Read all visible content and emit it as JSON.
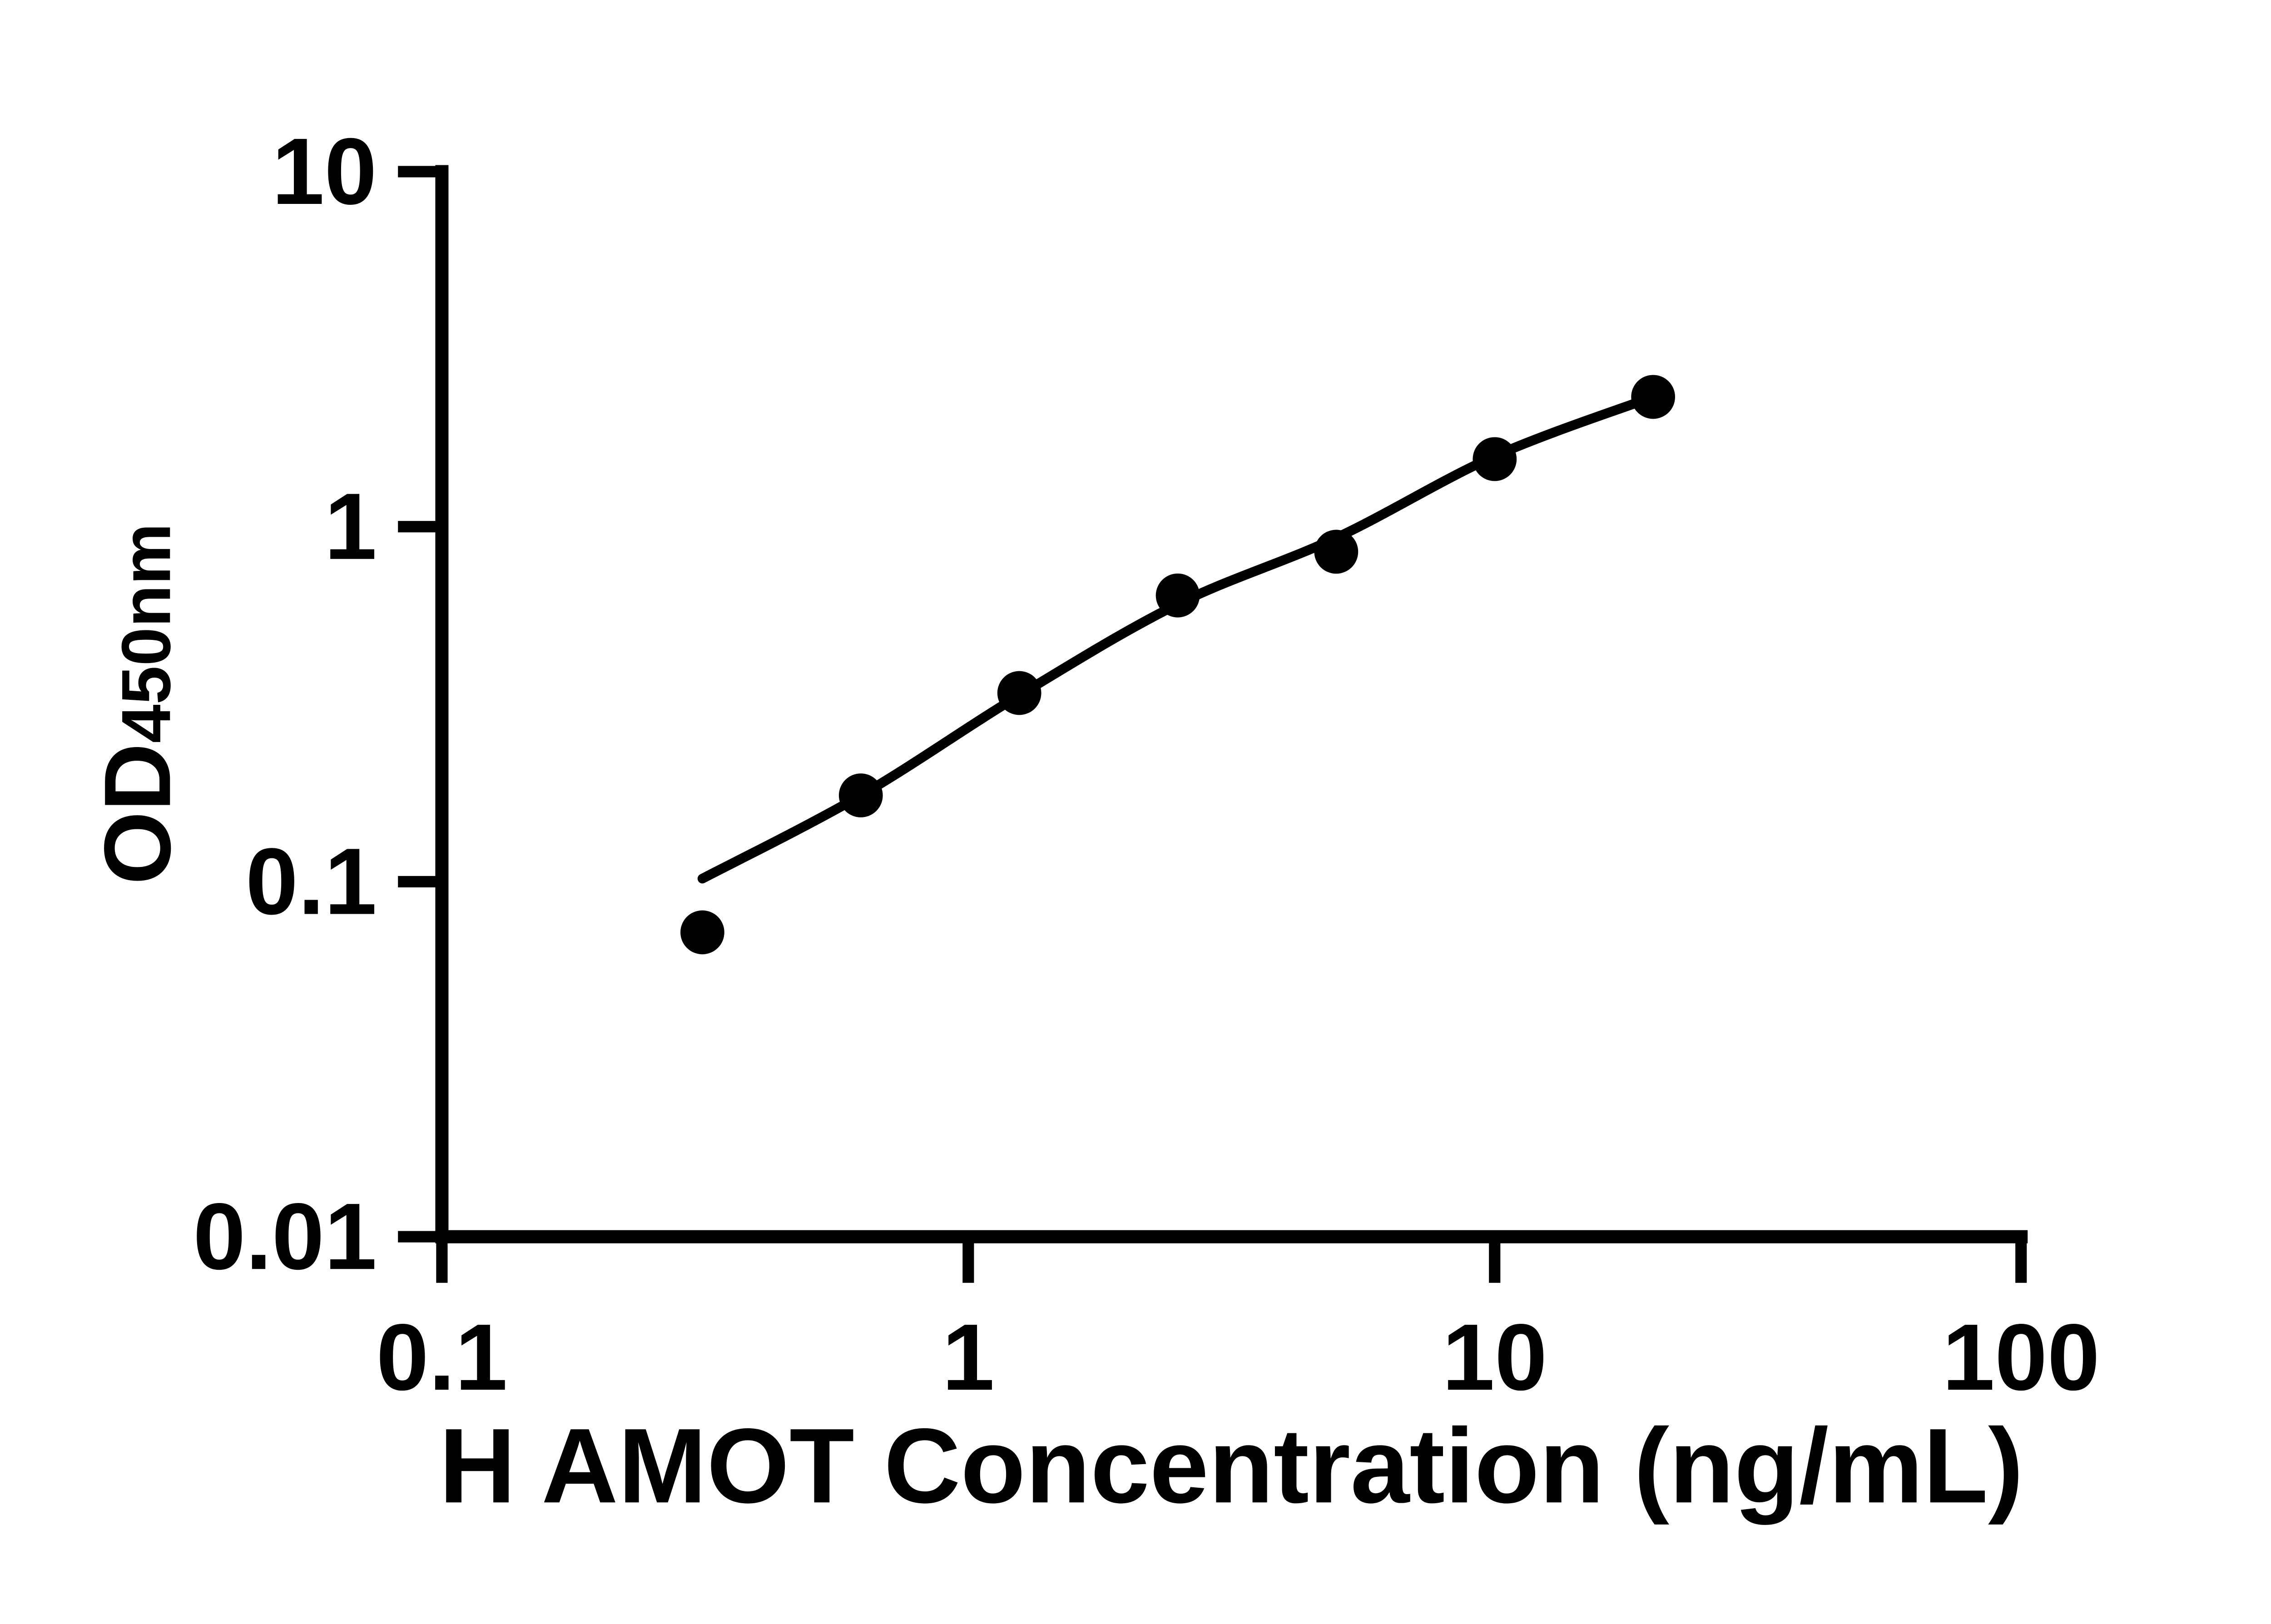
{
  "page": {
    "background": "#ffffff"
  },
  "colors": {
    "ink": "#000000",
    "background": "#ffffff"
  },
  "chart_data": {
    "type": "scatter",
    "title": "",
    "xlabel": "H AMOT Concentration (ng/mL)",
    "ylabel": "OD",
    "ylabel_subscript": "450nm",
    "x_scale": "log",
    "y_scale": "log",
    "xlim": [
      0.1,
      100
    ],
    "ylim": [
      0.01,
      10
    ],
    "grid": false,
    "legend": "none",
    "x_ticks": [
      {
        "value": 0.1,
        "label": "0.1"
      },
      {
        "value": 1,
        "label": "1"
      },
      {
        "value": 10,
        "label": "10"
      },
      {
        "value": 100,
        "label": "100"
      }
    ],
    "y_ticks": [
      {
        "value": 10,
        "label": "10"
      },
      {
        "value": 1,
        "label": "1"
      },
      {
        "value": 0.1,
        "label": "0.1"
      },
      {
        "value": 0.01,
        "label": "0.01"
      }
    ],
    "series": [
      {
        "name": "H AMOT standard curve points",
        "marker": "filled-circle",
        "color": "#000000",
        "points": [
          [
            0.3125,
            0.072
          ],
          [
            0.625,
            0.175
          ],
          [
            1.25,
            0.34
          ],
          [
            2.5,
            0.64
          ],
          [
            5,
            0.85
          ],
          [
            10,
            1.55
          ],
          [
            20,
            2.32
          ]
        ]
      }
    ],
    "fit_curve": {
      "name": "fitted standard curve",
      "color": "#000000",
      "points": [
        [
          0.3125,
          0.102
        ],
        [
          0.625,
          0.175
        ],
        [
          1.25,
          0.335
        ],
        [
          2.5,
          0.605
        ],
        [
          5,
          0.93
        ],
        [
          10,
          1.58
        ],
        [
          20,
          2.32
        ]
      ]
    }
  }
}
